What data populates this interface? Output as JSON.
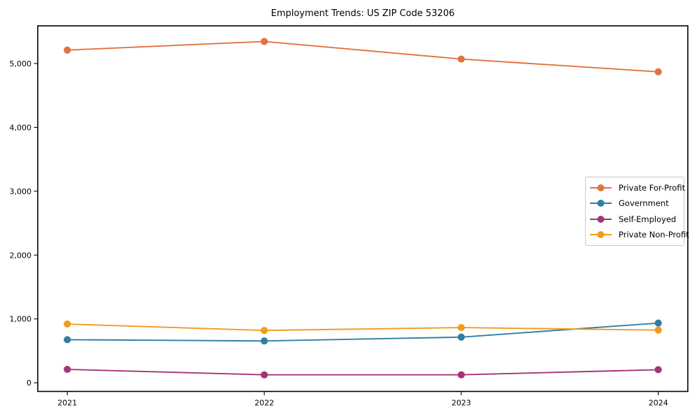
{
  "title": "Employment Trends: US ZIP Code 53206",
  "chart_data": {
    "type": "line",
    "title": "Employment Trends: US ZIP Code 53206",
    "xlabel": "",
    "ylabel": "",
    "x": [
      2021,
      2022,
      2023,
      2024
    ],
    "x_tick_labels": [
      "2021",
      "2022",
      "2023",
      "2024"
    ],
    "series": [
      {
        "name": "Private For-Profit",
        "color": "#e2733c",
        "values": [
          5210,
          5345,
          5070,
          4870
        ]
      },
      {
        "name": "Government",
        "color": "#2f7fa5",
        "values": [
          675,
          655,
          715,
          935
        ]
      },
      {
        "name": "Self-Employed",
        "color": "#a23577",
        "values": [
          210,
          125,
          125,
          205
        ]
      },
      {
        "name": "Private Non-Profit",
        "color": "#f19b1f",
        "values": [
          920,
          820,
          865,
          825
        ]
      }
    ],
    "ylim": [
      -135,
      5590
    ],
    "yticks": {
      "values": [
        0,
        1000,
        2000,
        3000,
        4000,
        5000
      ],
      "labels": [
        "0",
        "1,000",
        "2,000",
        "3,000",
        "4,000",
        "5,000"
      ]
    },
    "grid": false,
    "legend_position": "center right",
    "marker": "circle"
  }
}
